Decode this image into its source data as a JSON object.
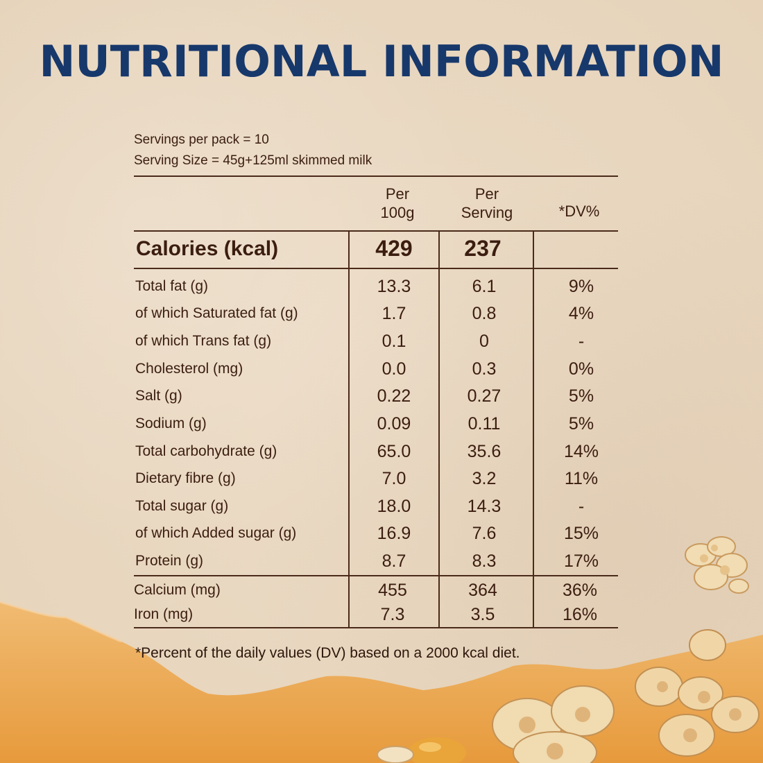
{
  "heading": "NUTRITIONAL INFORMATION",
  "servings_per_pack": "Servings per pack = 10",
  "serving_size": "Serving Size = 45g+125ml skimmed milk",
  "columns": {
    "per100_line1": "Per",
    "per100_line2": "100g",
    "perserv_line1": "Per",
    "perserv_line2": "Serving",
    "dv": "*DV%"
  },
  "calories": {
    "label": "Calories (kcal)",
    "per100": "429",
    "perserving": "237",
    "dv": ""
  },
  "rows": [
    {
      "label": "Total fat (g)",
      "per100": "13.3",
      "perserving": "6.1",
      "dv": "9%"
    },
    {
      "label": "of which Saturated fat (g)",
      "per100": "1.7",
      "perserving": "0.8",
      "dv": "4%"
    },
    {
      "label": "of which Trans fat (g)",
      "per100": "0.1",
      "perserving": "0",
      "dv": "-"
    },
    {
      "label": "Cholesterol (mg)",
      "per100": "0.0",
      "perserving": "0.3",
      "dv": "0%"
    },
    {
      "label": "Salt (g)",
      "per100": "0.22",
      "perserving": "0.27",
      "dv": "5%"
    },
    {
      "label": "Sodium (g)",
      "per100": "0.09",
      "perserving": "0.11",
      "dv": "5%"
    },
    {
      "label": "Total carbohydrate (g)",
      "per100": "65.0",
      "perserving": "35.6",
      "dv": "14%"
    },
    {
      "label": "Dietary fibre (g)",
      "per100": "7.0",
      "perserving": "3.2",
      "dv": "11%"
    },
    {
      "label": "Total sugar (g)",
      "per100": "18.0",
      "perserving": "14.3",
      "dv": "-"
    },
    {
      "label": "of which Added sugar (g)",
      "per100": "16.9",
      "perserving": "7.6",
      "dv": "15%"
    },
    {
      "label": "Protein (g)",
      "per100": "8.7",
      "perserving": "8.3",
      "dv": "17%"
    }
  ],
  "minerals": [
    {
      "label": "Calcium (mg)",
      "per100": "455",
      "perserving": "364",
      "dv": "36%"
    },
    {
      "label": "Iron (mg)",
      "per100": "7.3",
      "perserving": "3.5",
      "dv": "16%"
    }
  ],
  "footnote": "*Percent of the daily values (DV) based on a 2000 kcal diet.",
  "colors": {
    "background": "#ead9c3",
    "heading": "#17386b",
    "text": "#3b1d10",
    "wave": "#e9a955"
  }
}
